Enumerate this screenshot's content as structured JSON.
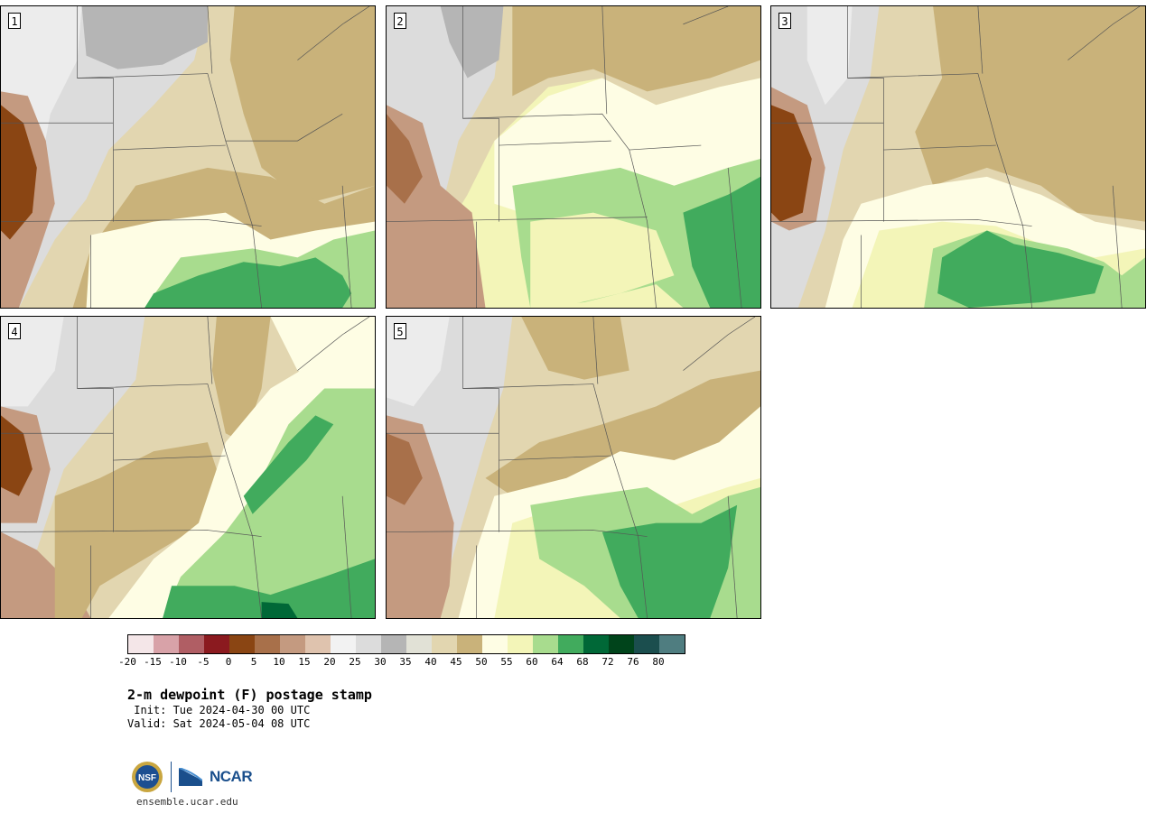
{
  "panels": [
    {
      "label": "1"
    },
    {
      "label": "2"
    },
    {
      "label": "3"
    },
    {
      "label": "4"
    },
    {
      "label": "5"
    }
  ],
  "colorbar": {
    "colors": [
      "#f4e6e8",
      "#d8a2a8",
      "#b05e64",
      "#8b1a1f",
      "#8a4513",
      "#a8704a",
      "#c49a80",
      "#dfc3ae",
      "#f2f2f2",
      "#dcdcdc",
      "#b5b5b5",
      "#e1e1d6",
      "#e2d6b0",
      "#c9b27a",
      "#fefde4",
      "#f3f5b8",
      "#a8dc8e",
      "#41ab5d",
      "#006837",
      "#00441b",
      "#1b4e4e",
      "#4f7d80"
    ],
    "tick_labels": [
      "-20",
      "-15",
      "-10",
      "-5",
      "0",
      "5",
      "10",
      "15",
      "20",
      "25",
      "30",
      "35",
      "40",
      "45",
      "50",
      "55",
      "60",
      "64",
      "68",
      "72",
      "76",
      "80"
    ]
  },
  "title": "2-m dewpoint (F) postage stamp",
  "init": " Init: Tue 2024-04-30 00 UTC",
  "valid": "Valid: Sat 2024-05-04 08 UTC",
  "logo_nsf": "NSF",
  "logo_ncar": "NCAR",
  "url": "ensemble.ucar.edu"
}
